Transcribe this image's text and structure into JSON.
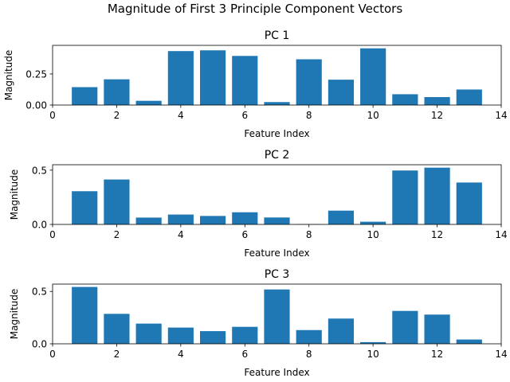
{
  "figure": {
    "title": "Magnitude of First 3 Principle Component Vectors"
  },
  "colors": {
    "bar": "#1f77b4",
    "axes": "#000000",
    "background": "#ffffff"
  },
  "chart_data": [
    {
      "type": "bar",
      "title": "PC 1",
      "xlabel": "Feature Index",
      "ylabel": "Magnitude",
      "x": [
        1,
        2,
        3,
        4,
        5,
        6,
        7,
        8,
        9,
        10,
        11,
        12,
        13
      ],
      "values": [
        0.144,
        0.207,
        0.034,
        0.434,
        0.44,
        0.395,
        0.024,
        0.368,
        0.204,
        0.456,
        0.087,
        0.064,
        0.125
      ],
      "xlim": [
        0,
        14
      ],
      "ylim": [
        0,
        0.48
      ],
      "xticks": [
        0,
        2,
        4,
        6,
        8,
        10,
        12,
        14
      ],
      "yticks": [
        0,
        0.25
      ],
      "ytick_labels": [
        "0.00",
        "0.25"
      ],
      "grid": false,
      "legend": "none"
    },
    {
      "type": "bar",
      "title": "PC 2",
      "xlabel": "Feature Index",
      "ylabel": "Magnitude",
      "x": [
        1,
        2,
        3,
        4,
        5,
        6,
        7,
        8,
        9,
        10,
        11,
        12,
        13
      ],
      "values": [
        0.306,
        0.414,
        0.063,
        0.091,
        0.078,
        0.112,
        0.064,
        0.003,
        0.127,
        0.025,
        0.497,
        0.523,
        0.386
      ],
      "xlim": [
        0,
        14
      ],
      "ylim": [
        0,
        0.55
      ],
      "xticks": [
        0,
        2,
        4,
        6,
        8,
        10,
        12,
        14
      ],
      "yticks": [
        0,
        0.5
      ],
      "ytick_labels": [
        "0.0",
        "0.5"
      ],
      "grid": false,
      "legend": "none"
    },
    {
      "type": "bar",
      "title": "PC 3",
      "xlabel": "Feature Index",
      "ylabel": "Magnitude",
      "x": [
        1,
        2,
        3,
        4,
        5,
        6,
        7,
        8,
        9,
        10,
        11,
        12,
        13
      ],
      "values": [
        0.543,
        0.286,
        0.193,
        0.155,
        0.121,
        0.162,
        0.519,
        0.131,
        0.241,
        0.016,
        0.314,
        0.279,
        0.041
      ],
      "xlim": [
        0,
        14
      ],
      "ylim": [
        0,
        0.57
      ],
      "xticks": [
        0,
        2,
        4,
        6,
        8,
        10,
        12,
        14
      ],
      "yticks": [
        0,
        0.5
      ],
      "ytick_labels": [
        "0.0",
        "0.5"
      ],
      "grid": false,
      "legend": "none"
    }
  ]
}
